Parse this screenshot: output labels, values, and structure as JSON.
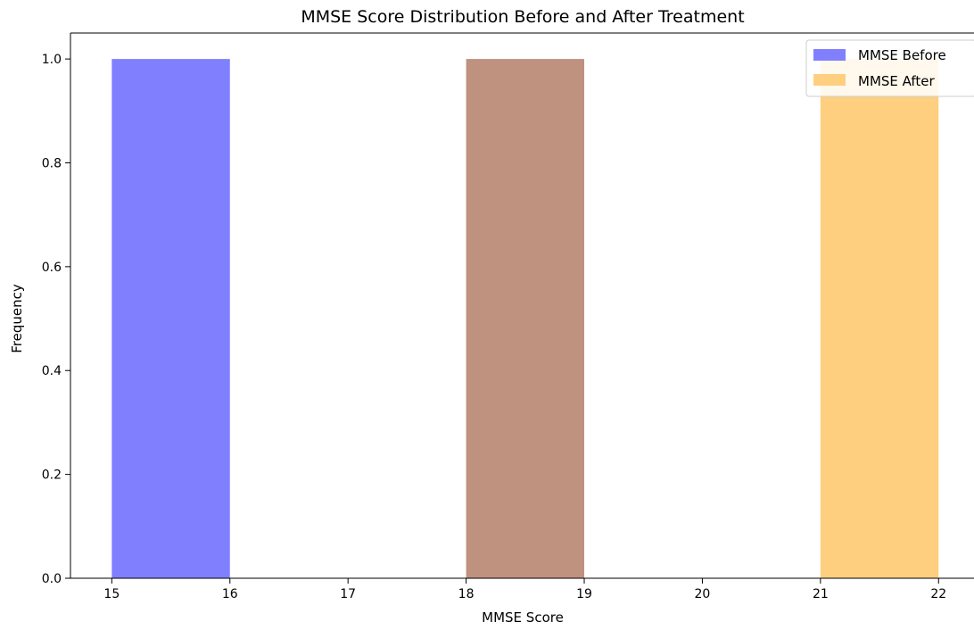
{
  "chart_data": {
    "type": "bar",
    "title": "MMSE Score Distribution Before and After Treatment",
    "xlabel": "MMSE Score",
    "ylabel": "Frequency",
    "xlim": [
      14.65,
      22.3
    ],
    "ylim": [
      0.0,
      1.05
    ],
    "xticks": [
      15,
      16,
      17,
      18,
      19,
      20,
      21,
      22
    ],
    "xtick_labels": [
      "15",
      "16",
      "17",
      "18",
      "19",
      "20",
      "21",
      "22"
    ],
    "yticks": [
      0.0,
      0.2,
      0.4,
      0.6,
      0.8,
      1.0
    ],
    "ytick_labels": [
      "0.0",
      "0.2",
      "0.4",
      "0.6",
      "0.8",
      "1.0"
    ],
    "grid": false,
    "legend_position": "top-right",
    "series": [
      {
        "name": "MMSE Before",
        "color": "#8080ff",
        "bars": [
          {
            "x0": 15,
            "x1": 16,
            "count": 1
          },
          {
            "x0": 18,
            "x1": 19,
            "count": 1
          }
        ]
      },
      {
        "name": "MMSE After",
        "color": "#ffcf80",
        "bars": [
          {
            "x0": 18,
            "x1": 19,
            "count": 1
          },
          {
            "x0": 21,
            "x1": 22,
            "count": 1
          }
        ]
      }
    ],
    "overlap_color": "#bf917f"
  }
}
